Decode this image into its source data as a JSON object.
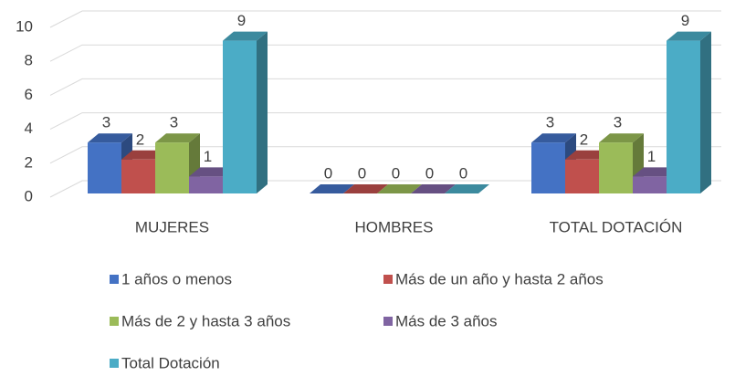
{
  "chart_data": {
    "type": "bar3d",
    "categories": [
      "MUJERES",
      "HOMBRES",
      "TOTAL DOTACIÓN"
    ],
    "series": [
      {
        "name": "1 años o menos",
        "color": "#4472c4",
        "values": [
          3,
          0,
          3
        ]
      },
      {
        "name": "Más de un año y hasta 2 años",
        "color": "#c0504d",
        "values": [
          2,
          0,
          2
        ]
      },
      {
        "name": "Más de 2 y hasta 3 años",
        "color": "#9bbb59",
        "values": [
          3,
          0,
          3
        ]
      },
      {
        "name": "Más de 3 años",
        "color": "#8064a2",
        "values": [
          1,
          0,
          1
        ]
      },
      {
        "name": "Total Dotación",
        "color": "#4bacc6",
        "values": [
          9,
          0,
          9
        ]
      }
    ],
    "ylim": [
      0,
      10
    ],
    "yticks": [
      0,
      2,
      4,
      6,
      8,
      10
    ],
    "grid": true,
    "legend": "bottom"
  }
}
